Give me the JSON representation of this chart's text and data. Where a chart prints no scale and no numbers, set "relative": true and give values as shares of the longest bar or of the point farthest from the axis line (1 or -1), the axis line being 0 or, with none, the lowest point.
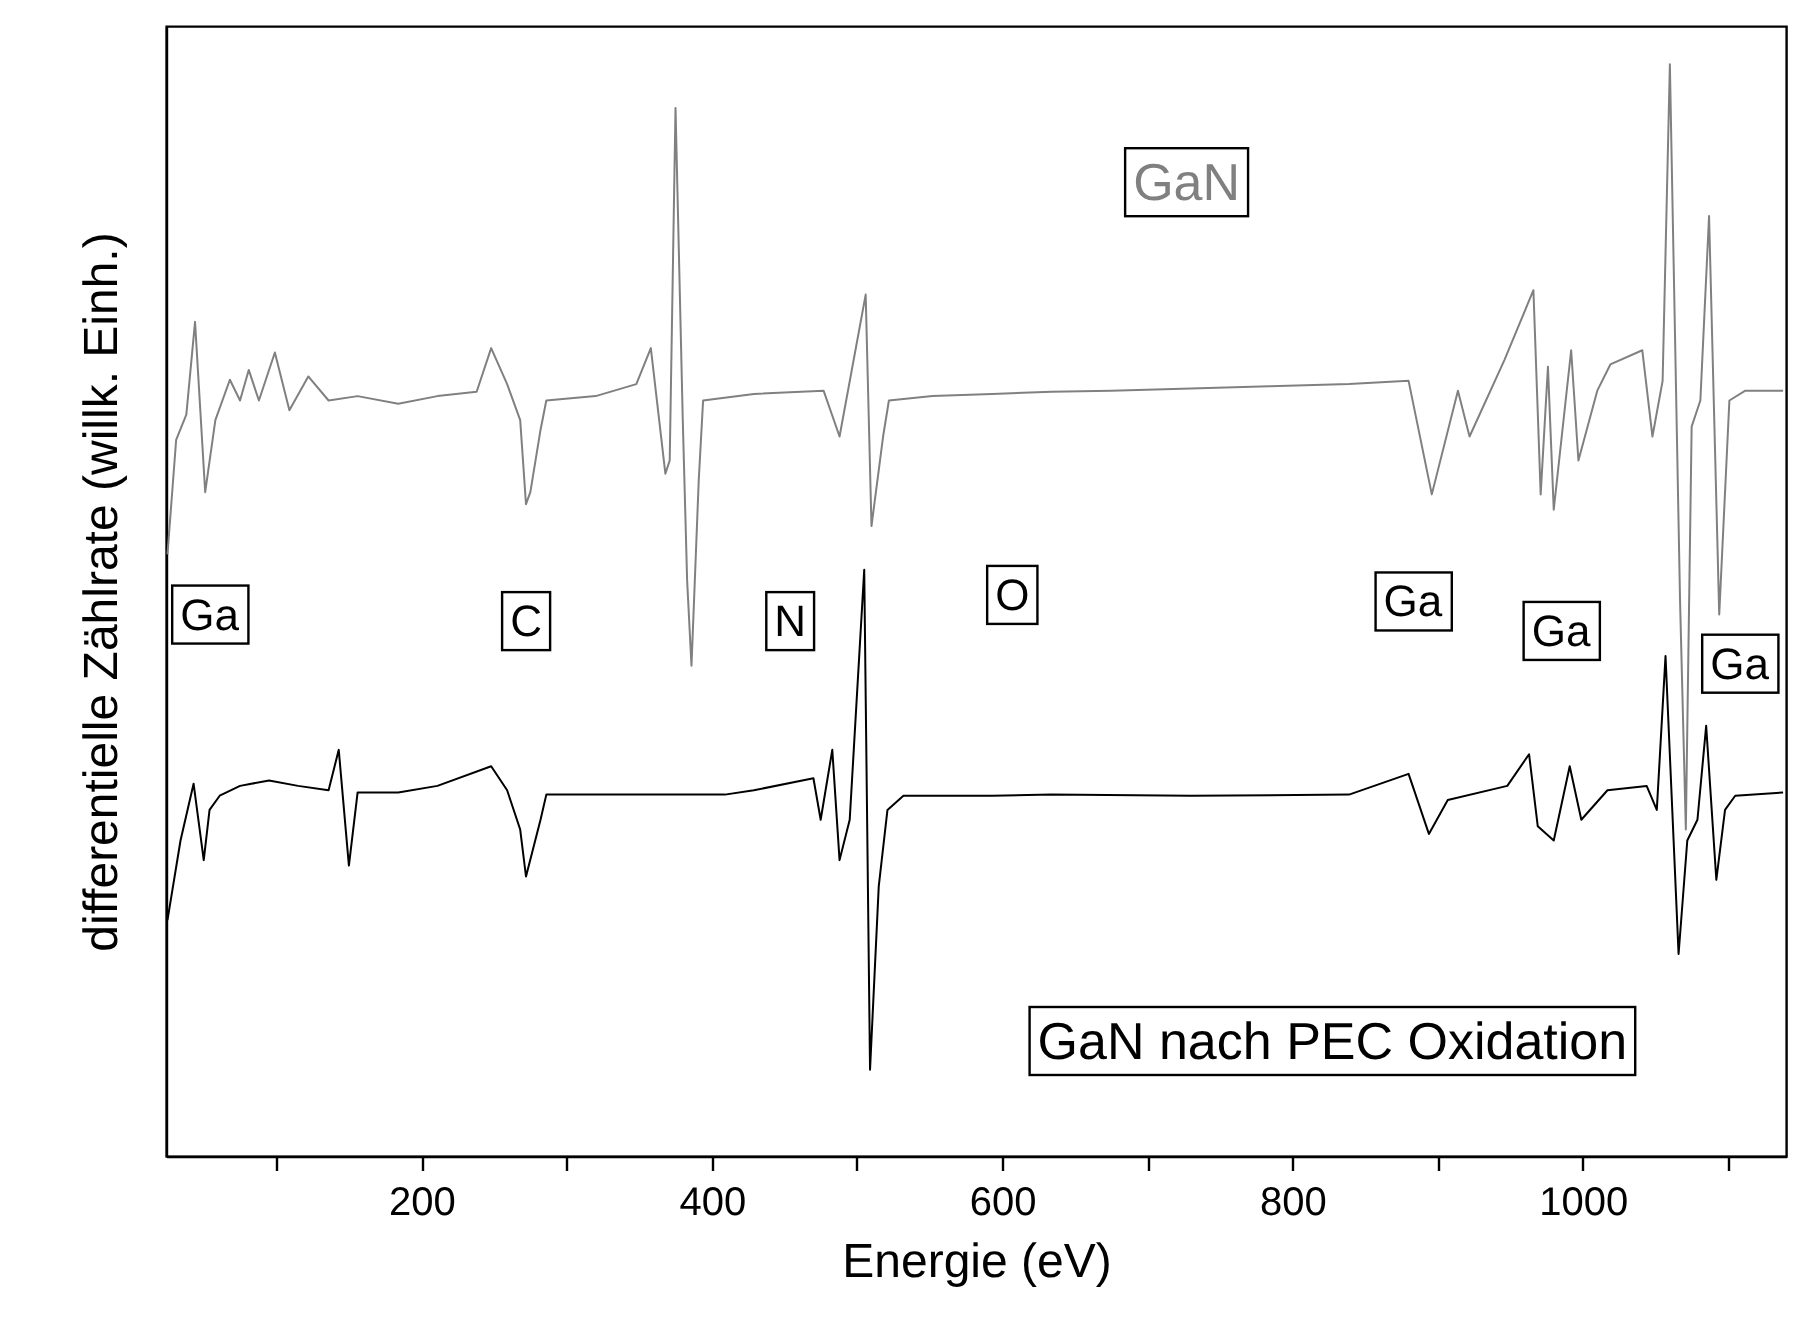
{
  "chart_data": {
    "type": "line",
    "relative": true,
    "xlabel": "Energie (eV)",
    "ylabel": "differentielle Zählrate (willk. Einh.)",
    "xlim": [
      24,
      1140
    ],
    "xticks": [
      {
        "value": 100,
        "label": null
      },
      200,
      {
        "value": 300,
        "label": null
      },
      400,
      {
        "value": 500,
        "label": null
      },
      600,
      {
        "value": 700,
        "label": null
      },
      800,
      {
        "value": 900,
        "label": null
      },
      1000,
      {
        "value": 1100,
        "label": null
      }
    ],
    "series": [
      {
        "name": "GaN",
        "color": "#808080",
        "x": [
          25,
          31,
          38,
          44,
          51,
          58,
          68,
          75,
          81,
          88,
          99,
          109,
          122,
          136,
          156,
          184,
          211,
          238,
          248,
          259,
          268,
          272,
          275,
          282,
          286,
          320,
          348,
          358,
          368,
          371,
          375,
          380,
          383,
          386,
          391,
          394,
          429,
          477,
          488,
          506,
          510,
          518,
          522,
          552,
          593,
          634,
          675,
          730,
          784,
          839,
          880,
          896,
          914,
          922,
          946,
          966,
          971,
          976,
          980,
          992,
          997,
          1010,
          1019,
          1041,
          1048,
          1055,
          1060,
          1067,
          1071,
          1075,
          1081,
          1087,
          1094,
          1101,
          1112,
          1138
        ],
        "values": [
          0.551,
          0.656,
          0.679,
          0.764,
          0.608,
          0.674,
          0.711,
          0.692,
          0.72,
          0.692,
          0.736,
          0.683,
          0.714,
          0.692,
          0.696,
          0.689,
          0.696,
          0.7,
          0.74,
          0.707,
          0.674,
          0.597,
          0.608,
          0.665,
          0.692,
          0.696,
          0.707,
          0.74,
          0.625,
          0.637,
          0.96,
          0.674,
          0.527,
          0.449,
          0.619,
          0.692,
          0.698,
          0.701,
          0.659,
          0.789,
          0.577,
          0.659,
          0.692,
          0.696,
          0.698,
          0.7,
          0.701,
          0.703,
          0.705,
          0.707,
          0.71,
          0.606,
          0.701,
          0.659,
          0.729,
          0.793,
          0.606,
          0.723,
          0.592,
          0.738,
          0.637,
          0.701,
          0.725,
          0.738,
          0.659,
          0.71,
          1.0,
          0.509,
          0.299,
          0.668,
          0.692,
          0.861,
          0.496,
          0.692,
          0.701,
          0.701
        ]
      },
      {
        "name": "GaN nach PEC Oxidation",
        "color": "#000000",
        "x": [
          25,
          34,
          43,
          50,
          54,
          61,
          75,
          95,
          115,
          136,
          143,
          150,
          156,
          184,
          211,
          248,
          259,
          268,
          272,
          282,
          286,
          320,
          375,
          409,
          429,
          470,
          475,
          483,
          488,
          495,
          505,
          509,
          515,
          521,
          532,
          593,
          634,
          730,
          839,
          880,
          894,
          907,
          948,
          963,
          969,
          980,
          991,
          999,
          1017,
          1044,
          1051,
          1057,
          1066,
          1072,
          1079,
          1085,
          1092,
          1098,
          1105,
          1138
        ],
        "values": [
          0.216,
          0.289,
          0.341,
          0.271,
          0.317,
          0.33,
          0.339,
          0.344,
          0.339,
          0.335,
          0.372,
          0.266,
          0.333,
          0.333,
          0.339,
          0.357,
          0.335,
          0.299,
          0.256,
          0.308,
          0.331,
          0.331,
          0.331,
          0.331,
          0.335,
          0.346,
          0.308,
          0.372,
          0.271,
          0.308,
          0.537,
          0.079,
          0.247,
          0.317,
          0.33,
          0.33,
          0.331,
          0.33,
          0.331,
          0.35,
          0.295,
          0.326,
          0.339,
          0.368,
          0.302,
          0.289,
          0.357,
          0.308,
          0.335,
          0.339,
          0.317,
          0.458,
          0.185,
          0.289,
          0.308,
          0.394,
          0.253,
          0.317,
          0.33,
          0.333
        ]
      }
    ],
    "annotations": [
      {
        "text": "Ga",
        "x": 54,
        "y": 0.495
      },
      {
        "text": "C",
        "x": 272,
        "y": 0.489
      },
      {
        "text": "N",
        "x": 454,
        "y": 0.489
      },
      {
        "text": "O",
        "x": 607,
        "y": 0.513
      },
      {
        "text": "Ga",
        "x": 883,
        "y": 0.507
      },
      {
        "text": "Ga",
        "x": 985,
        "y": 0.48
      },
      {
        "text": "Ga",
        "x": 1108,
        "y": 0.45
      }
    ]
  }
}
